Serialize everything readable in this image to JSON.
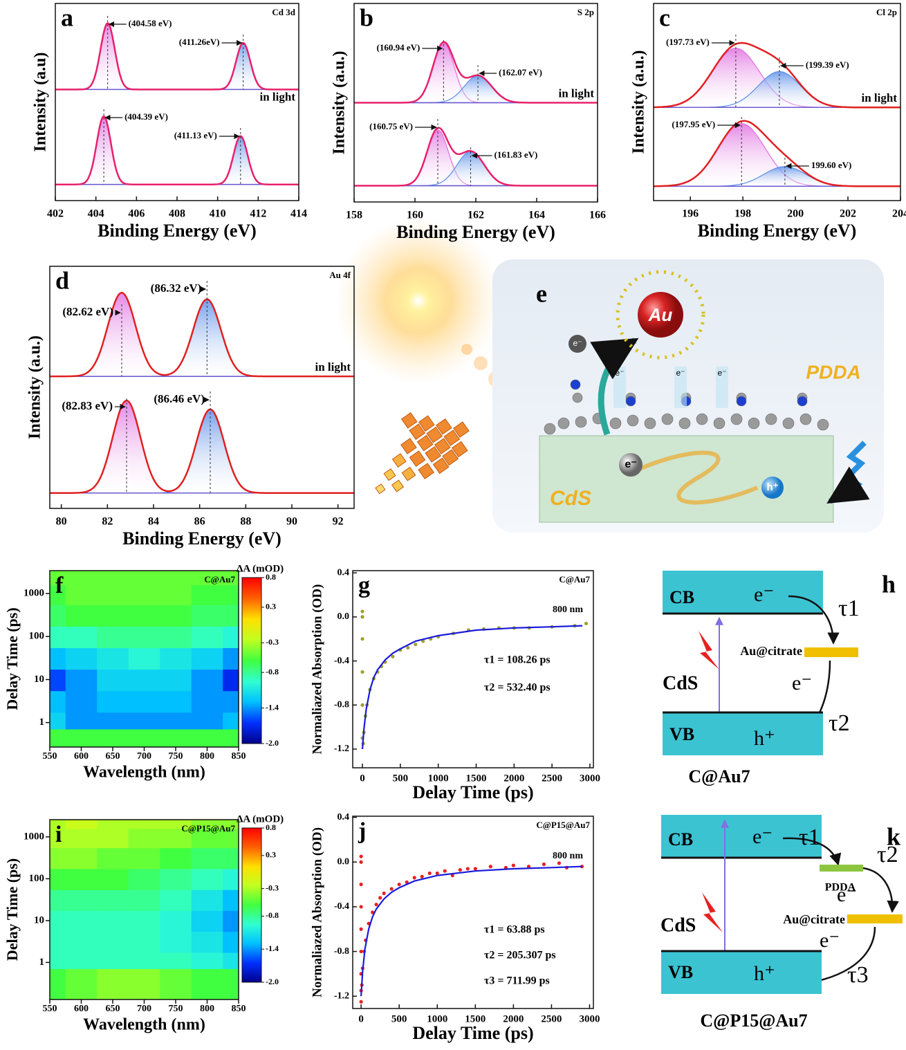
{
  "chart_data": [
    {
      "type": "xps",
      "panel": "a",
      "title": "Cd 3d",
      "xlabel": "Binding Energy (eV)",
      "ylabel": "Intensity (a.u)",
      "note": "in light",
      "xlim": [
        402,
        414
      ],
      "xticks": [
        402,
        404,
        406,
        408,
        410,
        412,
        414
      ],
      "ylim": [
        0,
        110
      ],
      "envelope_color": "#e8206a",
      "baseline_color": "#6a5ad0",
      "spectra": [
        {
          "baseline": 62,
          "components": [
            {
              "center": 404.58,
              "height": 37,
              "width": 0.35,
              "color": "#e070e0"
            },
            {
              "center": 411.26,
              "height": 26,
              "width": 0.35,
              "color": "#5a8de8"
            }
          ],
          "annotations": [
            {
              "text": "(404.58 eV)",
              "x": 404.58
            },
            {
              "text": "(411.26eV)",
              "x": 411.26
            }
          ]
        },
        {
          "baseline": 9,
          "components": [
            {
              "center": 404.39,
              "height": 38,
              "width": 0.35,
              "color": "#e070e0"
            },
            {
              "center": 411.13,
              "height": 27,
              "width": 0.35,
              "color": "#5a8de8"
            }
          ],
          "annotations": [
            {
              "text": "(404.39 eV)",
              "x": 404.39
            },
            {
              "text": "(411.13 eV)",
              "x": 411.13
            }
          ]
        }
      ]
    },
    {
      "type": "xps",
      "panel": "b",
      "title": "S 2p",
      "xlabel": "Binding Energy (eV)",
      "ylabel": "Intensity (a.u.)",
      "note": "in light",
      "xlim": [
        158,
        166
      ],
      "xticks": [
        158,
        160,
        162,
        164,
        166
      ],
      "ylim": [
        0,
        110
      ],
      "envelope_color": "#e8206a",
      "baseline_color": "#6a5ad0",
      "spectra": [
        {
          "baseline": 55,
          "components": [
            {
              "center": 160.94,
              "height": 33,
              "width": 0.35,
              "color": "#e070e0"
            },
            {
              "center": 162.07,
              "height": 15,
              "width": 0.45,
              "color": "#5a8de8"
            }
          ],
          "annotations": [
            {
              "text": "(160.94 eV)",
              "x": 160.94
            },
            {
              "text": "(162.07 eV)",
              "x": 162.07
            }
          ]
        },
        {
          "baseline": 9,
          "components": [
            {
              "center": 160.75,
              "height": 31,
              "width": 0.35,
              "color": "#e070e0"
            },
            {
              "center": 161.83,
              "height": 19,
              "width": 0.45,
              "color": "#5a8de8"
            }
          ],
          "annotations": [
            {
              "text": "(160.75 eV)",
              "x": 160.75
            },
            {
              "text": "(161.83 eV)",
              "x": 161.83
            }
          ]
        }
      ]
    },
    {
      "type": "xps",
      "panel": "c",
      "title": "Cl 2p",
      "xlabel": "Binding Energy (eV)",
      "ylabel": "Intensity (a.u.)",
      "note": "in light",
      "xlim": [
        194.6,
        204
      ],
      "xticks": [
        196,
        198,
        200,
        202,
        204
      ],
      "ylim": [
        0,
        110
      ],
      "envelope_color": "#e02020",
      "baseline_color": "#6a5ad0",
      "spectra": [
        {
          "baseline": 52,
          "components": [
            {
              "center": 197.73,
              "height": 33,
              "width": 0.9,
              "color": "#e070e0"
            },
            {
              "center": 199.39,
              "height": 20,
              "width": 0.8,
              "color": "#5a8de8"
            }
          ],
          "annotations": [
            {
              "text": "(197.73 eV)",
              "x": 197.73
            },
            {
              "text": "(199.39 eV)",
              "x": 199.39
            }
          ]
        },
        {
          "baseline": 8,
          "components": [
            {
              "center": 197.95,
              "height": 35,
              "width": 0.9,
              "color": "#e070e0"
            },
            {
              "center": 199.6,
              "height": 11,
              "width": 0.8,
              "color": "#5a8de8"
            }
          ],
          "annotations": [
            {
              "text": "(197.95 eV)",
              "x": 197.95
            },
            {
              "text": "199.60 eV)",
              "x": 199.6
            }
          ]
        }
      ]
    },
    {
      "type": "xps",
      "panel": "d",
      "title": "Au 4f",
      "xlabel": "Binding Energy (eV)",
      "ylabel": "Intensity (a.u.)",
      "note": "in light",
      "xlim": [
        79.5,
        92.7
      ],
      "xticks": [
        80,
        82,
        84,
        86,
        88,
        90,
        92
      ],
      "ylim": [
        0,
        110
      ],
      "envelope_color": "#e02020",
      "baseline_color": "#6a5ad0",
      "spectra": [
        {
          "baseline": 60,
          "components": [
            {
              "center": 82.62,
              "height": 38,
              "width": 0.6,
              "color": "#e070e0"
            },
            {
              "center": 86.32,
              "height": 35,
              "width": 0.6,
              "color": "#5a8de8"
            }
          ],
          "annotations": [
            {
              "text": "(82.62 eV)",
              "x": 82.62
            },
            {
              "text": "(86.32 eV)",
              "x": 86.32
            }
          ]
        },
        {
          "baseline": 7,
          "components": [
            {
              "center": 82.83,
              "height": 42,
              "width": 0.6,
              "color": "#e070e0"
            },
            {
              "center": 86.46,
              "height": 38,
              "width": 0.6,
              "color": "#5a8de8"
            }
          ],
          "annotations": [
            {
              "text": "(82.83 eV)",
              "x": 82.83
            },
            {
              "text": "(86.46 eV)",
              "x": 86.46
            }
          ]
        }
      ]
    },
    {
      "type": "heatmap",
      "panel": "f",
      "title": "C@Au7",
      "xlabel": "Wavelength (nm)",
      "ylabel": "Delay Time (ps)",
      "xlim": [
        550,
        850
      ],
      "xticks": [
        550,
        600,
        650,
        700,
        750,
        800,
        850
      ],
      "ylim": [
        0.27,
        3400
      ],
      "yscale": "log",
      "yticks": [
        1,
        10,
        100,
        1000
      ],
      "x": [
        550,
        600,
        650,
        700,
        750,
        800,
        850
      ],
      "y": [
        0.5,
        1,
        3,
        10,
        30,
        100,
        300,
        1000,
        2500
      ],
      "values": [
        [
          -0.6,
          -0.6,
          -0.6,
          -0.6,
          -0.6,
          -0.6,
          -0.6
        ],
        [
          -1.2,
          -1.4,
          -1.4,
          -1.4,
          -1.4,
          -1.4,
          -1.3
        ],
        [
          -1.3,
          -1.4,
          -1.3,
          -1.3,
          -1.3,
          -1.4,
          -1.4
        ],
        [
          -1.6,
          -1.4,
          -1.2,
          -1.2,
          -1.2,
          -1.4,
          -1.7
        ],
        [
          -1.3,
          -1.2,
          -1.1,
          -1.0,
          -1.1,
          -1.2,
          -1.4
        ],
        [
          -0.9,
          -0.9,
          -0.8,
          -0.8,
          -0.8,
          -0.9,
          -1.0
        ],
        [
          -0.7,
          -0.6,
          -0.6,
          -0.6,
          -0.6,
          -0.7,
          -0.7
        ],
        [
          -0.6,
          -0.5,
          -0.5,
          -0.5,
          -0.5,
          -0.6,
          -0.6
        ],
        [
          -0.5,
          -0.5,
          -0.5,
          -0.5,
          -0.5,
          -0.5,
          -0.5
        ]
      ],
      "colorbar": {
        "label": "ΔA (mOD)",
        "clim": [
          -2.0,
          0.8
        ],
        "ticks": [
          0.8,
          0.3,
          -0.3,
          -0.8,
          -1.4,
          {
            "value": -2.0,
            "label": "-2.0"
          }
        ],
        "colormap": [
          "#00008a",
          "#0030ff",
          "#00c0ff",
          "#30ffd0",
          "#40ff40",
          "#c0ff20",
          "#ffe000",
          "#ff6000",
          "#ff0000"
        ]
      }
    },
    {
      "type": "kinetics",
      "panel": "g",
      "title": "C@Au7",
      "note": "800 nm",
      "xlabel": "Delay Time (ps)",
      "ylabel": "Normaliazed Absorption (OD)",
      "xlim": [
        -128,
        3046
      ],
      "xticks": [
        0,
        500,
        1000,
        1500,
        2000,
        2500,
        3000
      ],
      "ylim": [
        -1.37,
        0.42
      ],
      "yticks": [
        0.4,
        {
          "value": 0,
          "label": "0.0"
        },
        -0.4,
        -0.8,
        -1.2
      ],
      "points": {
        "color": "#a0a030",
        "x": [
          0,
          0,
          0,
          0,
          0,
          0,
          10,
          20,
          40,
          60,
          100,
          150,
          200,
          250,
          300,
          400,
          500,
          600,
          700,
          800,
          900,
          1000,
          1200,
          1400,
          1600,
          1800,
          2000,
          2200,
          2500,
          2800,
          2950
        ],
        "values": [
          0.05,
          0,
          -0.2,
          -0.5,
          -0.8,
          -1.1,
          -1.15,
          -1.05,
          -0.9,
          -0.8,
          -0.66,
          -0.56,
          -0.5,
          -0.45,
          -0.41,
          -0.36,
          -0.3,
          -0.28,
          -0.25,
          -0.22,
          -0.2,
          -0.18,
          -0.15,
          -0.12,
          -0.11,
          -0.1,
          -0.1,
          -0.1,
          -0.09,
          -0.08,
          -0.06
        ]
      },
      "fit": {
        "color": "#1a1adc",
        "x": [
          0,
          20,
          50,
          100,
          150,
          200,
          300,
          400,
          500,
          700,
          1000,
          1500,
          2000,
          2500,
          2900
        ],
        "values": [
          -1.2,
          -1.02,
          -0.84,
          -0.66,
          -0.55,
          -0.48,
          -0.39,
          -0.33,
          -0.29,
          -0.22,
          -0.17,
          -0.12,
          -0.1,
          -0.09,
          -0.08
        ]
      },
      "annotations": [
        "τ1 = 108.26 ps",
        "τ2 = 532.40 ps"
      ]
    },
    {
      "type": "heatmap",
      "panel": "i",
      "title": "C@P15@Au7",
      "xlabel": "Wavelength (nm)",
      "ylabel": "Delay Time (ps)",
      "xlim": [
        550,
        850
      ],
      "xticks": [
        550,
        600,
        650,
        700,
        750,
        800,
        850
      ],
      "ylim": [
        0.13,
        2580
      ],
      "yscale": "log",
      "yticks": [
        1,
        10,
        100,
        1000
      ],
      "x": [
        550,
        600,
        650,
        700,
        750,
        800,
        850
      ],
      "y": [
        0.5,
        1,
        3,
        10,
        30,
        100,
        300,
        1000,
        2500
      ],
      "values": [
        [
          -0.6,
          -0.5,
          -0.4,
          -0.4,
          -0.5,
          -0.6,
          -0.6
        ],
        [
          -0.9,
          -0.9,
          -0.9,
          -0.9,
          -0.9,
          -1.0,
          -1.1
        ],
        [
          -0.9,
          -0.9,
          -0.9,
          -0.9,
          -1.0,
          -1.1,
          -1.3
        ],
        [
          -0.9,
          -0.9,
          -0.9,
          -0.9,
          -1.0,
          -1.2,
          -1.4
        ],
        [
          -0.8,
          -0.8,
          -0.8,
          -0.8,
          -0.9,
          -1.1,
          -1.3
        ],
        [
          -0.6,
          -0.6,
          -0.6,
          -0.7,
          -0.8,
          -0.9,
          -1.0
        ],
        [
          -0.4,
          -0.4,
          -0.5,
          -0.5,
          -0.6,
          -0.7,
          -0.7
        ],
        [
          -0.3,
          -0.3,
          -0.3,
          -0.4,
          -0.4,
          -0.5,
          -0.5
        ],
        [
          -0.3,
          -0.2,
          -0.3,
          -0.3,
          -0.3,
          -0.4,
          -0.4
        ]
      ],
      "colorbar": {
        "label": "ΔA (mOD)",
        "clim": [
          -2.0,
          0.8
        ],
        "ticks": [
          0.8,
          0.3,
          -0.3,
          -0.8,
          -1.4,
          {
            "value": -2.0,
            "label": "-2.0"
          }
        ],
        "colormap": [
          "#00008a",
          "#0030ff",
          "#00c0ff",
          "#30ffd0",
          "#40ff40",
          "#c0ff20",
          "#ffe000",
          "#ff6000",
          "#ff0000"
        ]
      }
    },
    {
      "type": "kinetics",
      "panel": "j",
      "title": "C@P15@Au7",
      "note": "800 nm",
      "xlabel": "Delay Time (ps)",
      "ylabel": "Normaliazed Absorption (OD)",
      "xlim": [
        -110,
        3050
      ],
      "xticks": [
        0,
        500,
        1000,
        1500,
        2000,
        2500,
        3000
      ],
      "ylim": [
        -1.31,
        0.41
      ],
      "yticks": [
        0.4,
        {
          "value": 0,
          "label": "0.0"
        },
        -0.4,
        -0.8,
        -1.2
      ],
      "points": {
        "color": "#e82020",
        "x": [
          0,
          0,
          0,
          0,
          0,
          0,
          0,
          0,
          0,
          10,
          20,
          40,
          60,
          100,
          150,
          200,
          250,
          300,
          400,
          500,
          600,
          700,
          800,
          900,
          1000,
          1100,
          1200,
          1300,
          1400,
          1500,
          1700,
          1900,
          2000,
          2200,
          2400,
          2600,
          2700,
          2900
        ],
        "values": [
          0.05,
          0,
          -0.2,
          -0.4,
          -0.6,
          -0.8,
          -1.0,
          -1.15,
          -1.25,
          -1.1,
          -0.95,
          -0.8,
          -0.7,
          -0.55,
          -0.45,
          -0.38,
          -0.32,
          -0.28,
          -0.24,
          -0.2,
          -0.18,
          -0.14,
          -0.13,
          -0.1,
          -0.1,
          -0.08,
          -0.12,
          -0.07,
          -0.06,
          -0.06,
          -0.04,
          -0.05,
          -0.03,
          -0.04,
          -0.02,
          -0.01,
          -0.05,
          -0.04
        ]
      },
      "fit": {
        "color": "#1a1adc",
        "x": [
          0,
          20,
          50,
          100,
          150,
          200,
          300,
          400,
          500,
          700,
          1000,
          1500,
          2000,
          2500,
          2900
        ],
        "values": [
          -1.2,
          -0.98,
          -0.78,
          -0.6,
          -0.49,
          -0.42,
          -0.33,
          -0.27,
          -0.23,
          -0.17,
          -0.12,
          -0.08,
          -0.06,
          -0.05,
          -0.04
        ]
      },
      "annotations": [
        "τ1 = 63.88 ps",
        "τ2 = 205.307 ps",
        "τ3 = 711.99 ps"
      ]
    }
  ],
  "diagram_e": {
    "panel": "e",
    "metal": "Au",
    "polymer": "PDDA",
    "semiconductor": "CdS",
    "electron": "e⁻",
    "hole": "h⁺"
  },
  "diagram_h": {
    "panel": "h",
    "cb": "CB",
    "vb": "VB",
    "electron": "e⁻",
    "hole": "h⁺",
    "tau1": "τ1",
    "tau2": "τ2",
    "acceptor": "Au@citrate",
    "semiconductor": "CdS",
    "caption": "C@Au7"
  },
  "diagram_k": {
    "panel": "k",
    "cb": "CB",
    "vb": "VB",
    "electron": "e⁻",
    "hole": "h⁺",
    "tau1": "τ1",
    "tau2": "τ2",
    "tau3": "τ3",
    "mediator": "PDDA",
    "acceptor": "Au@citrate",
    "semiconductor": "CdS",
    "caption": "C@P15@Au7"
  }
}
